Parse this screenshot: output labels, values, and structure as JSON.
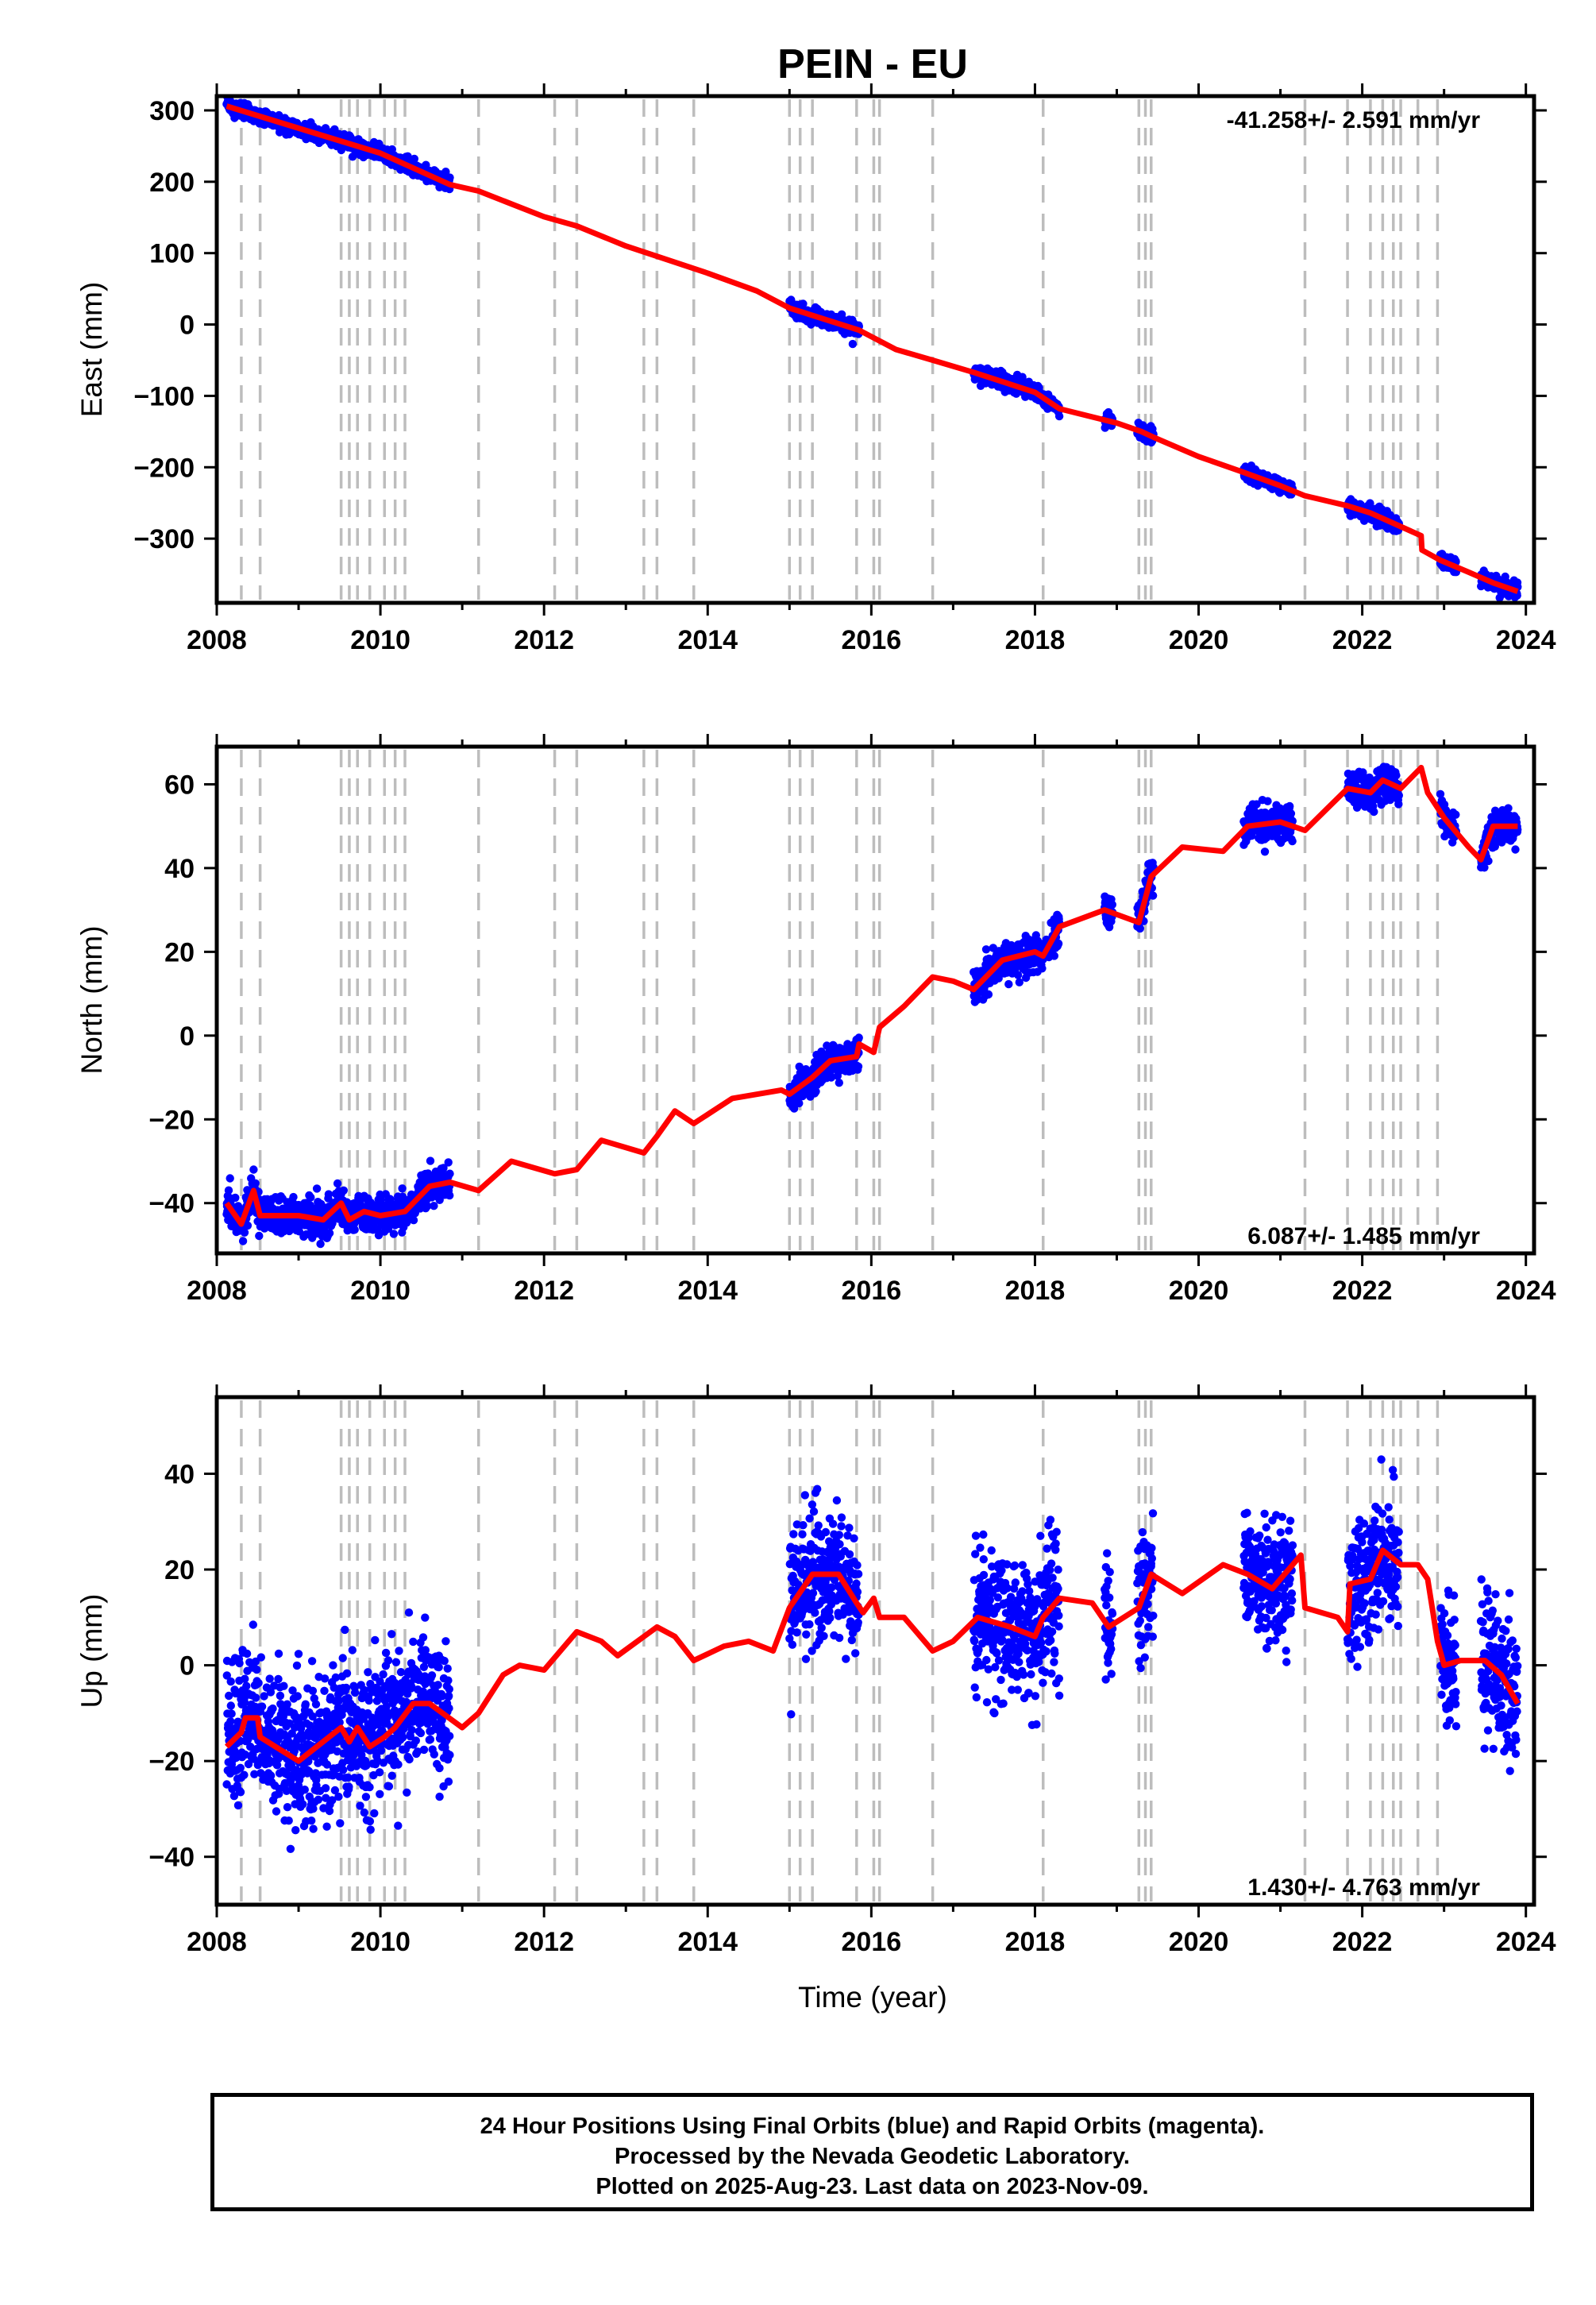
{
  "title": "PEIN - EU",
  "xlabel": "Time (year)",
  "footer": {
    "line1": "24 Hour Positions Using Final Orbits (blue) and Rapid Orbits (magenta).",
    "line2": "Processed by the Nevada Geodetic Laboratory.",
    "line3": "Plotted on 2025-Aug-23. Last data on 2023-Nov-09."
  },
  "colors": {
    "data": "#0000ff",
    "model": "#ff0000",
    "events": "#bdbdbd",
    "axis": "#000000"
  },
  "chart_data": [
    {
      "type": "scatter",
      "panel": "east",
      "ylabel": "East (mm)",
      "rate": "-41.258+/- 2.591 mm/yr",
      "rate_position": "top-right",
      "xlim": [
        2008,
        2024.1
      ],
      "ylim": [
        -390,
        320
      ],
      "xticks": [
        2008,
        2010,
        2012,
        2014,
        2016,
        2018,
        2020,
        2022,
        2024
      ],
      "yticks": [
        300,
        200,
        100,
        0,
        -100,
        -200,
        -300
      ],
      "event_lines": [
        2008.3,
        2008.53,
        2009.52,
        2009.62,
        2009.72,
        2009.87,
        2010.05,
        2010.18,
        2010.3,
        2011.2,
        2012.13,
        2012.4,
        2013.22,
        2013.38,
        2013.83,
        2015.0,
        2015.13,
        2015.28,
        2015.82,
        2016.03,
        2016.1,
        2016.75,
        2018.1,
        2019.27,
        2019.35,
        2019.42,
        2021.3,
        2021.82,
        2022.1,
        2022.25,
        2022.38,
        2022.47,
        2022.68,
        2022.92
      ],
      "data_ranges": [
        [
          2008.12,
          2010.85
        ],
        [
          2015.0,
          2015.85
        ],
        [
          2017.25,
          2018.3
        ],
        [
          2018.85,
          2018.95
        ],
        [
          2019.25,
          2019.45
        ],
        [
          2020.55,
          2021.15
        ],
        [
          2021.82,
          2022.45
        ],
        [
          2022.95,
          2023.15
        ],
        [
          2023.45,
          2023.9
        ]
      ],
      "model": [
        [
          2008.12,
          306
        ],
        [
          2009.0,
          275
        ],
        [
          2010.0,
          240
        ],
        [
          2010.85,
          196
        ],
        [
          2011.2,
          187
        ],
        [
          2012.0,
          151
        ],
        [
          2012.4,
          138
        ],
        [
          2013.0,
          110
        ],
        [
          2014.0,
          72
        ],
        [
          2014.6,
          47
        ],
        [
          2015.0,
          23
        ],
        [
          2015.85,
          -8
        ],
        [
          2016.3,
          -35
        ],
        [
          2016.75,
          -50
        ],
        [
          2017.25,
          -67
        ],
        [
          2018.0,
          -95
        ],
        [
          2018.3,
          -118
        ],
        [
          2019.0,
          -138
        ],
        [
          2019.3,
          -150
        ],
        [
          2019.45,
          -158
        ],
        [
          2020.0,
          -185
        ],
        [
          2020.5,
          -205
        ],
        [
          2021.0,
          -226
        ],
        [
          2021.3,
          -240
        ],
        [
          2021.82,
          -254
        ],
        [
          2022.1,
          -264
        ],
        [
          2022.45,
          -282
        ],
        [
          2022.72,
          -296
        ],
        [
          2022.73,
          -316
        ],
        [
          2022.95,
          -330
        ],
        [
          2023.3,
          -347
        ],
        [
          2023.6,
          -362
        ],
        [
          2023.9,
          -374
        ]
      ],
      "noise": 5
    },
    {
      "type": "scatter",
      "panel": "north",
      "ylabel": "North (mm)",
      "rate": "6.087+/- 1.485 mm/yr",
      "rate_position": "bottom-right",
      "xlim": [
        2008,
        2024.1
      ],
      "ylim": [
        -52,
        69
      ],
      "xticks": [
        2008,
        2010,
        2012,
        2014,
        2016,
        2018,
        2020,
        2022,
        2024
      ],
      "yticks": [
        60,
        40,
        20,
        0,
        -20,
        -40
      ],
      "event_lines": [
        2008.3,
        2008.53,
        2009.52,
        2009.62,
        2009.72,
        2009.87,
        2010.05,
        2010.18,
        2010.3,
        2011.2,
        2012.13,
        2012.4,
        2013.22,
        2013.38,
        2013.83,
        2015.0,
        2015.13,
        2015.28,
        2015.82,
        2016.03,
        2016.1,
        2016.75,
        2018.1,
        2019.27,
        2019.35,
        2019.42,
        2021.3,
        2021.82,
        2022.1,
        2022.25,
        2022.38,
        2022.47,
        2022.68,
        2022.92
      ],
      "data_ranges": [
        [
          2008.12,
          2010.85
        ],
        [
          2015.0,
          2015.85
        ],
        [
          2017.25,
          2018.3
        ],
        [
          2018.85,
          2018.95
        ],
        [
          2019.25,
          2019.45
        ],
        [
          2020.55,
          2021.15
        ],
        [
          2021.82,
          2022.45
        ],
        [
          2022.95,
          2023.15
        ],
        [
          2023.45,
          2023.9
        ]
      ],
      "model": [
        [
          2008.12,
          -40
        ],
        [
          2008.3,
          -45
        ],
        [
          2008.45,
          -37
        ],
        [
          2008.53,
          -43
        ],
        [
          2009.0,
          -43
        ],
        [
          2009.3,
          -44
        ],
        [
          2009.52,
          -40
        ],
        [
          2009.62,
          -44
        ],
        [
          2009.8,
          -42
        ],
        [
          2010.0,
          -43
        ],
        [
          2010.3,
          -42
        ],
        [
          2010.6,
          -36
        ],
        [
          2010.85,
          -35
        ],
        [
          2011.2,
          -37
        ],
        [
          2011.6,
          -30
        ],
        [
          2012.13,
          -33
        ],
        [
          2012.4,
          -32
        ],
        [
          2012.7,
          -25
        ],
        [
          2013.22,
          -28
        ],
        [
          2013.38,
          -24
        ],
        [
          2013.6,
          -18
        ],
        [
          2013.83,
          -21
        ],
        [
          2014.3,
          -15
        ],
        [
          2014.9,
          -13
        ],
        [
          2015.0,
          -14
        ],
        [
          2015.28,
          -10
        ],
        [
          2015.5,
          -6
        ],
        [
          2015.82,
          -5
        ],
        [
          2015.85,
          -2
        ],
        [
          2016.03,
          -4
        ],
        [
          2016.1,
          2
        ],
        [
          2016.4,
          7
        ],
        [
          2016.75,
          14
        ],
        [
          2017.0,
          13
        ],
        [
          2017.25,
          11
        ],
        [
          2017.6,
          18
        ],
        [
          2018.0,
          20
        ],
        [
          2018.1,
          19
        ],
        [
          2018.3,
          26
        ],
        [
          2018.85,
          30
        ],
        [
          2019.27,
          27
        ],
        [
          2019.42,
          38
        ],
        [
          2019.8,
          45
        ],
        [
          2020.3,
          44
        ],
        [
          2020.6,
          50
        ],
        [
          2021.0,
          51
        ],
        [
          2021.3,
          49
        ],
        [
          2021.82,
          59
        ],
        [
          2022.1,
          58
        ],
        [
          2022.25,
          61
        ],
        [
          2022.47,
          59
        ],
        [
          2022.72,
          64
        ],
        [
          2022.8,
          58
        ],
        [
          2023.0,
          52
        ],
        [
          2023.3,
          45
        ],
        [
          2023.45,
          42
        ],
        [
          2023.6,
          50
        ],
        [
          2023.9,
          50
        ]
      ],
      "noise": 2
    },
    {
      "type": "scatter",
      "panel": "up",
      "ylabel": "Up (mm)",
      "rate": "1.430+/- 4.763 mm/yr",
      "rate_position": "bottom-right",
      "xlim": [
        2008,
        2024.1
      ],
      "ylim": [
        -50,
        56
      ],
      "xticks": [
        2008,
        2010,
        2012,
        2014,
        2016,
        2018,
        2020,
        2022,
        2024
      ],
      "yticks": [
        40,
        20,
        0,
        -20,
        -40
      ],
      "event_lines": [
        2008.3,
        2008.53,
        2009.52,
        2009.62,
        2009.72,
        2009.87,
        2010.05,
        2010.18,
        2010.3,
        2011.2,
        2012.13,
        2012.4,
        2013.22,
        2013.38,
        2013.83,
        2015.0,
        2015.13,
        2015.28,
        2015.82,
        2016.03,
        2016.1,
        2016.75,
        2018.1,
        2019.27,
        2019.35,
        2019.42,
        2021.3,
        2021.82,
        2022.1,
        2022.25,
        2022.38,
        2022.47,
        2022.68,
        2022.92
      ],
      "data_ranges": [
        [
          2008.12,
          2010.85
        ],
        [
          2015.0,
          2015.85
        ],
        [
          2017.25,
          2018.3
        ],
        [
          2018.85,
          2018.95
        ],
        [
          2019.25,
          2019.45
        ],
        [
          2020.55,
          2021.15
        ],
        [
          2021.82,
          2022.45
        ],
        [
          2022.95,
          2023.15
        ],
        [
          2023.45,
          2023.9
        ]
      ],
      "model": [
        [
          2008.12,
          -17
        ],
        [
          2008.3,
          -14
        ],
        [
          2008.35,
          -11
        ],
        [
          2008.5,
          -11
        ],
        [
          2008.53,
          -15
        ],
        [
          2009.0,
          -20
        ],
        [
          2009.52,
          -13
        ],
        [
          2009.62,
          -16
        ],
        [
          2009.72,
          -13
        ],
        [
          2009.87,
          -17
        ],
        [
          2010.05,
          -15
        ],
        [
          2010.18,
          -13
        ],
        [
          2010.4,
          -8
        ],
        [
          2010.6,
          -8
        ],
        [
          2011.0,
          -13
        ],
        [
          2011.2,
          -10
        ],
        [
          2011.5,
          -2
        ],
        [
          2011.7,
          0
        ],
        [
          2012.0,
          -1
        ],
        [
          2012.4,
          7
        ],
        [
          2012.7,
          5
        ],
        [
          2012.9,
          2
        ],
        [
          2013.22,
          6
        ],
        [
          2013.38,
          8
        ],
        [
          2013.6,
          6
        ],
        [
          2013.83,
          1
        ],
        [
          2014.2,
          4
        ],
        [
          2014.5,
          5
        ],
        [
          2014.8,
          3
        ],
        [
          2015.0,
          12
        ],
        [
          2015.28,
          19
        ],
        [
          2015.6,
          19
        ],
        [
          2015.82,
          13
        ],
        [
          2015.9,
          11
        ],
        [
          2016.03,
          14
        ],
        [
          2016.1,
          10
        ],
        [
          2016.4,
          10
        ],
        [
          2016.75,
          3
        ],
        [
          2017.0,
          5
        ],
        [
          2017.3,
          10
        ],
        [
          2017.7,
          8
        ],
        [
          2018.0,
          6
        ],
        [
          2018.1,
          10
        ],
        [
          2018.3,
          14
        ],
        [
          2018.7,
          13
        ],
        [
          2018.9,
          8
        ],
        [
          2019.27,
          12
        ],
        [
          2019.42,
          19
        ],
        [
          2019.8,
          15
        ],
        [
          2020.3,
          21
        ],
        [
          2020.6,
          19
        ],
        [
          2020.9,
          16
        ],
        [
          2021.25,
          23
        ],
        [
          2021.3,
          12
        ],
        [
          2021.7,
          10
        ],
        [
          2021.82,
          7
        ],
        [
          2021.85,
          17
        ],
        [
          2022.1,
          18
        ],
        [
          2022.25,
          24
        ],
        [
          2022.47,
          21
        ],
        [
          2022.68,
          21
        ],
        [
          2022.8,
          18
        ],
        [
          2022.92,
          5
        ],
        [
          2023.0,
          0
        ],
        [
          2023.2,
          1
        ],
        [
          2023.5,
          1
        ],
        [
          2023.7,
          -2
        ],
        [
          2023.9,
          -8
        ]
      ],
      "noise": 7
    }
  ]
}
